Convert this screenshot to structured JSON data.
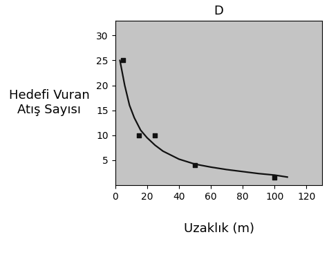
{
  "chart_data": {
    "type": "scatter",
    "title": "D",
    "x_label": "Uzaklık (m)",
    "y_label": "Hedefi Vuran Atış Sayısı",
    "series": [
      {
        "type": "scatter",
        "color": "#111111",
        "marker": "square",
        "x": [
          5,
          15,
          25,
          50,
          100
        ],
        "values": [
          25,
          10,
          10,
          4,
          1.5
        ]
      },
      {
        "type": "line",
        "color": "#111111",
        "line_style": "solid",
        "x": [
          3,
          6,
          9,
          12,
          16,
          20,
          25,
          30,
          40,
          50,
          60,
          70,
          80,
          90,
          100,
          108
        ],
        "values": [
          25,
          20,
          16,
          13.5,
          11,
          9.5,
          8,
          6.8,
          5.2,
          4.2,
          3.6,
          3.1,
          2.7,
          2.3,
          2,
          1.6
        ]
      }
    ],
    "xlim": [
      0,
      130
    ],
    "xticks": [
      0,
      20,
      40,
      60,
      80,
      100,
      120
    ],
    "ylim": [
      0,
      33
    ],
    "yticks": [
      5,
      10,
      15,
      20,
      25,
      30
    ],
    "grid": false
  }
}
